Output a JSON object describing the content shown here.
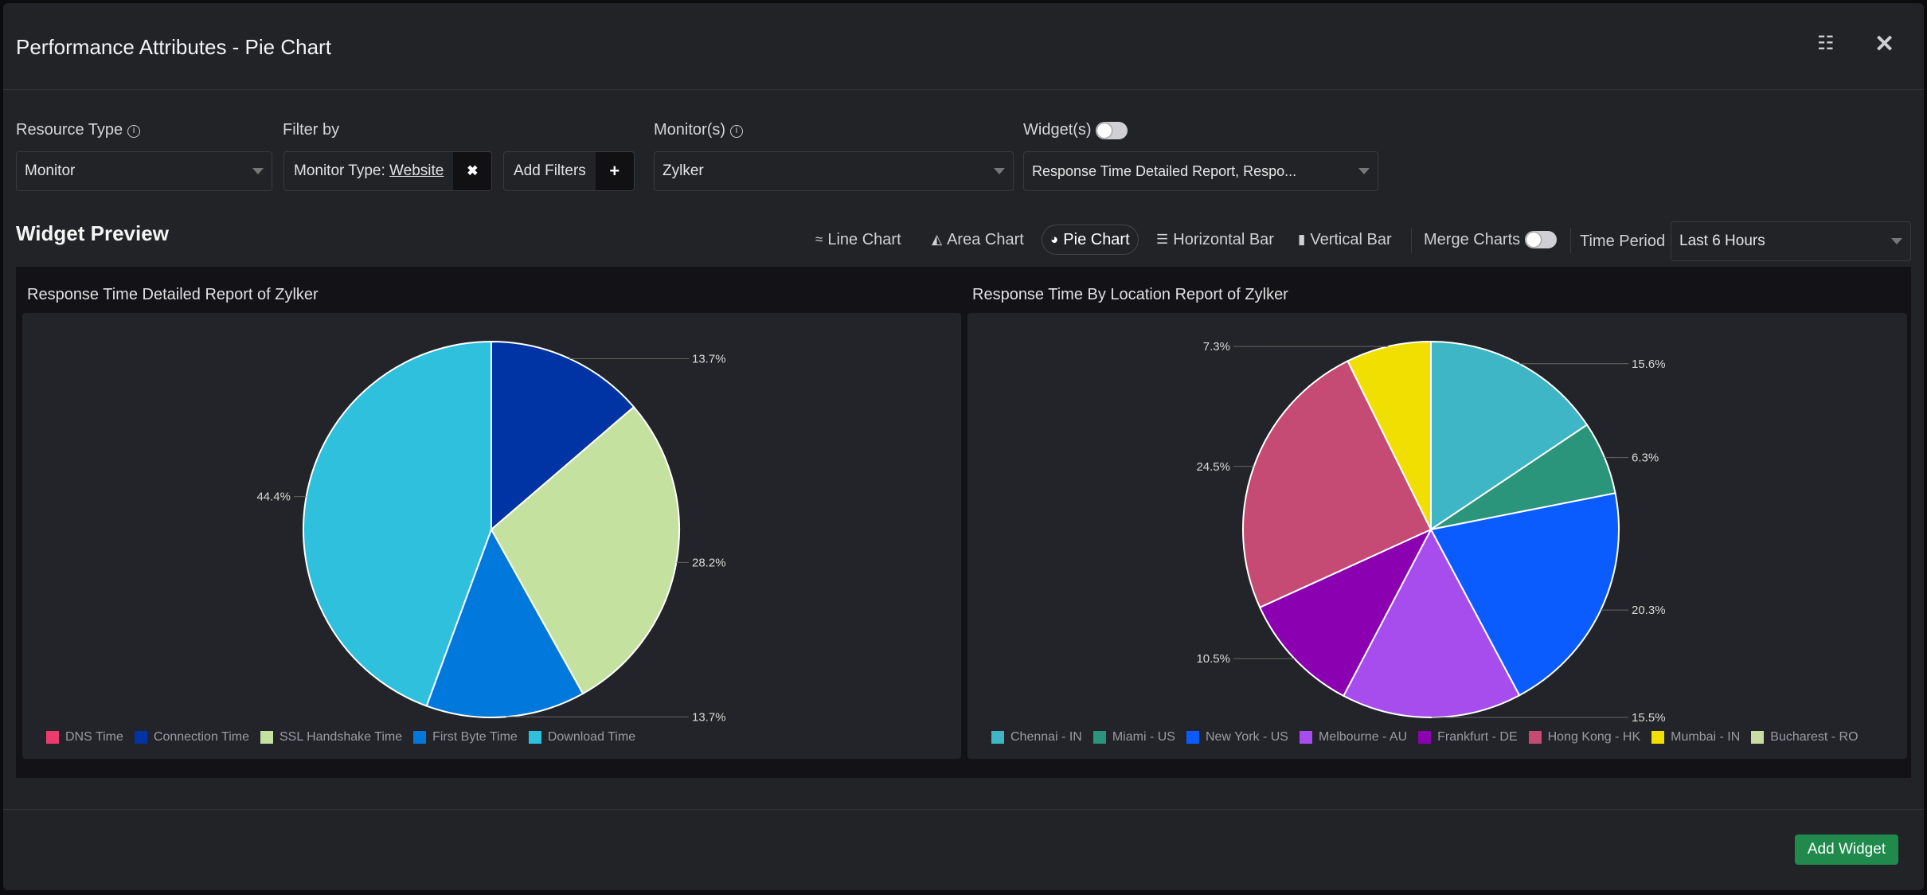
{
  "header": {
    "title": "Performance Attributes - Pie Chart",
    "icons": [
      "settings-list-icon",
      "close-icon"
    ]
  },
  "form": {
    "resource_type": {
      "label": "Resource Type",
      "value": "Monitor"
    },
    "filter_by": {
      "label": "Filter by",
      "chip_key": "Monitor Type:",
      "chip_value": "Website",
      "remove": "✖",
      "add_label": "Add Filters",
      "add": "+"
    },
    "monitors": {
      "label": "Monitor(s)",
      "value": "Zylker"
    },
    "widgets": {
      "label": "Widget(s)",
      "toggle_on": false,
      "value": "Response Time Detailed Report, Respo..."
    }
  },
  "preview": {
    "title": "Widget Preview",
    "chart_types": [
      {
        "label": "Line Chart",
        "icon": "≈"
      },
      {
        "label": "Area Chart",
        "icon": "◭"
      },
      {
        "label": "Pie Chart",
        "icon": "◕",
        "active": true
      },
      {
        "label": "Horizontal Bar",
        "icon": "☰"
      },
      {
        "label": "Vertical Bar",
        "icon": "▮"
      }
    ],
    "merge_charts": "Merge Charts",
    "time_period_label": "Time Period",
    "time_period": "Last 6 Hours"
  },
  "footer": {
    "add_widget": "Add Widget"
  },
  "chart_data": [
    {
      "type": "pie",
      "title": "Response Time Detailed Report of Zylker",
      "labels": [
        "DNS Time",
        "Connection Time",
        "SSL Handshake Time",
        "First Byte Time",
        "Download Time"
      ],
      "values": [
        0,
        13.7,
        28.2,
        13.7,
        44.4
      ],
      "colors": [
        "#ee3b6e",
        "#0033a3",
        "#c5e1a0",
        "#0078dc",
        "#2ec0dc"
      ],
      "legend": "bottom-left"
    },
    {
      "type": "pie",
      "title": "Response Time By Location Report of Zylker",
      "labels": [
        "Chennai - IN",
        "Miami - US",
        "New York - US",
        "Melbourne - AU",
        "Frankfurt - DE",
        "Hong Kong - HK",
        "Mumbai - IN",
        "Bucharest - RO"
      ],
      "values": [
        15.6,
        6.3,
        20.3,
        15.5,
        10.5,
        24.5,
        7.3,
        0
      ],
      "colors": [
        "#3fb6c6",
        "#2a957a",
        "#0b5cff",
        "#a74ded",
        "#8b00b0",
        "#c64b74",
        "#f0df00",
        "#cadca4"
      ],
      "legend": "bottom-left"
    }
  ]
}
